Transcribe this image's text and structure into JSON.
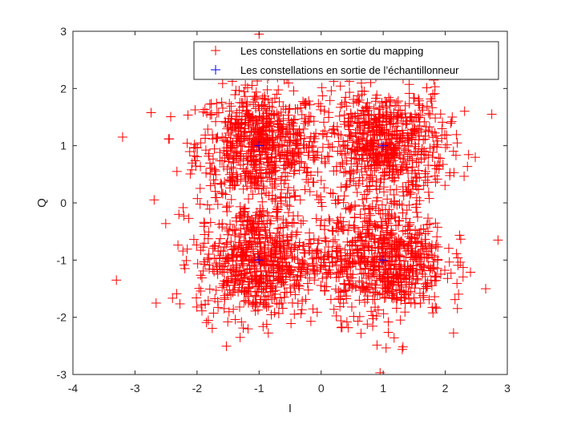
{
  "chart_data": {
    "type": "scatter",
    "title": "",
    "xlabel": "I",
    "ylabel": "Q",
    "xlim": [
      -4,
      3
    ],
    "ylim": [
      -3,
      3
    ],
    "xticks": [
      -4,
      -3,
      -2,
      -1,
      0,
      1,
      2,
      3
    ],
    "yticks": [
      -3,
      -2,
      -1,
      0,
      1,
      2,
      3
    ],
    "tick_labels_x": [
      "-4",
      "-3",
      "-2",
      "-1",
      "0",
      "1",
      "2",
      "3"
    ],
    "tick_labels_y": [
      "-3",
      "-2",
      "-1",
      "0",
      "1",
      "2",
      "3"
    ],
    "grid": false,
    "legend_position": "top-right",
    "series": [
      {
        "name": "Les constellations en sortie du mapping",
        "marker": "+",
        "color": "#ff0000",
        "centers": [
          [
            -1,
            1
          ],
          [
            1,
            1
          ],
          [
            -1,
            -1
          ],
          [
            1,
            -1
          ]
        ],
        "spread_sigma": 0.5,
        "points_per_center": 700,
        "notable_outliers": [
          [
            -3.3,
            -1.35
          ],
          [
            -3.2,
            1.15
          ],
          [
            -1.0,
            2.95
          ],
          [
            0.95,
            -2.97
          ],
          [
            2.85,
            -0.65
          ],
          [
            2.75,
            1.55
          ]
        ]
      },
      {
        "name": "Les constellations en sortie de l’échantillonneur",
        "marker": "+",
        "color": "#0000ff",
        "x": [
          -1,
          1,
          -1,
          1
        ],
        "y": [
          1,
          1,
          -1,
          -1
        ]
      }
    ]
  }
}
